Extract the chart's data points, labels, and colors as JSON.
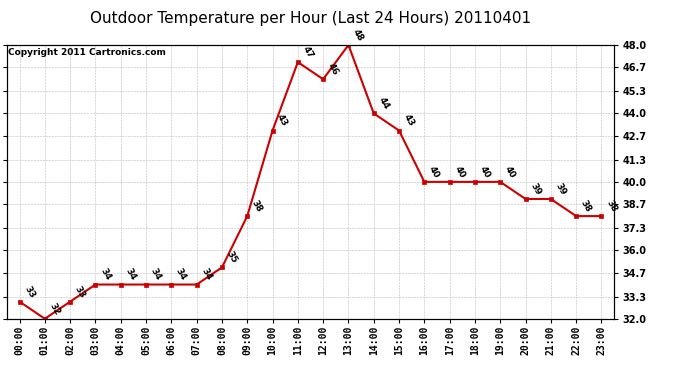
{
  "title": "Outdoor Temperature per Hour (Last 24 Hours) 20110401",
  "copyright": "Copyright 2011 Cartronics.com",
  "hours": [
    "00:00",
    "01:00",
    "02:00",
    "03:00",
    "04:00",
    "05:00",
    "06:00",
    "07:00",
    "08:00",
    "09:00",
    "10:00",
    "11:00",
    "12:00",
    "13:00",
    "14:00",
    "15:00",
    "16:00",
    "17:00",
    "18:00",
    "19:00",
    "20:00",
    "21:00",
    "22:00",
    "23:00"
  ],
  "temps": [
    33,
    32,
    33,
    34,
    34,
    34,
    34,
    34,
    35,
    38,
    43,
    47,
    46,
    48,
    44,
    43,
    40,
    40,
    40,
    40,
    39,
    39,
    38,
    38
  ],
  "line_color": "#cc0000",
  "marker_color": "#cc0000",
  "bg_color": "#ffffff",
  "grid_color": "#bbbbbb",
  "ylim_min": 32.0,
  "ylim_max": 48.0,
  "yticks": [
    32.0,
    33.3,
    34.7,
    36.0,
    37.3,
    38.7,
    40.0,
    41.3,
    42.7,
    44.0,
    45.3,
    46.7,
    48.0
  ],
  "title_fontsize": 11,
  "label_fontsize": 6.5,
  "copyright_fontsize": 6.5,
  "tick_fontsize": 7
}
